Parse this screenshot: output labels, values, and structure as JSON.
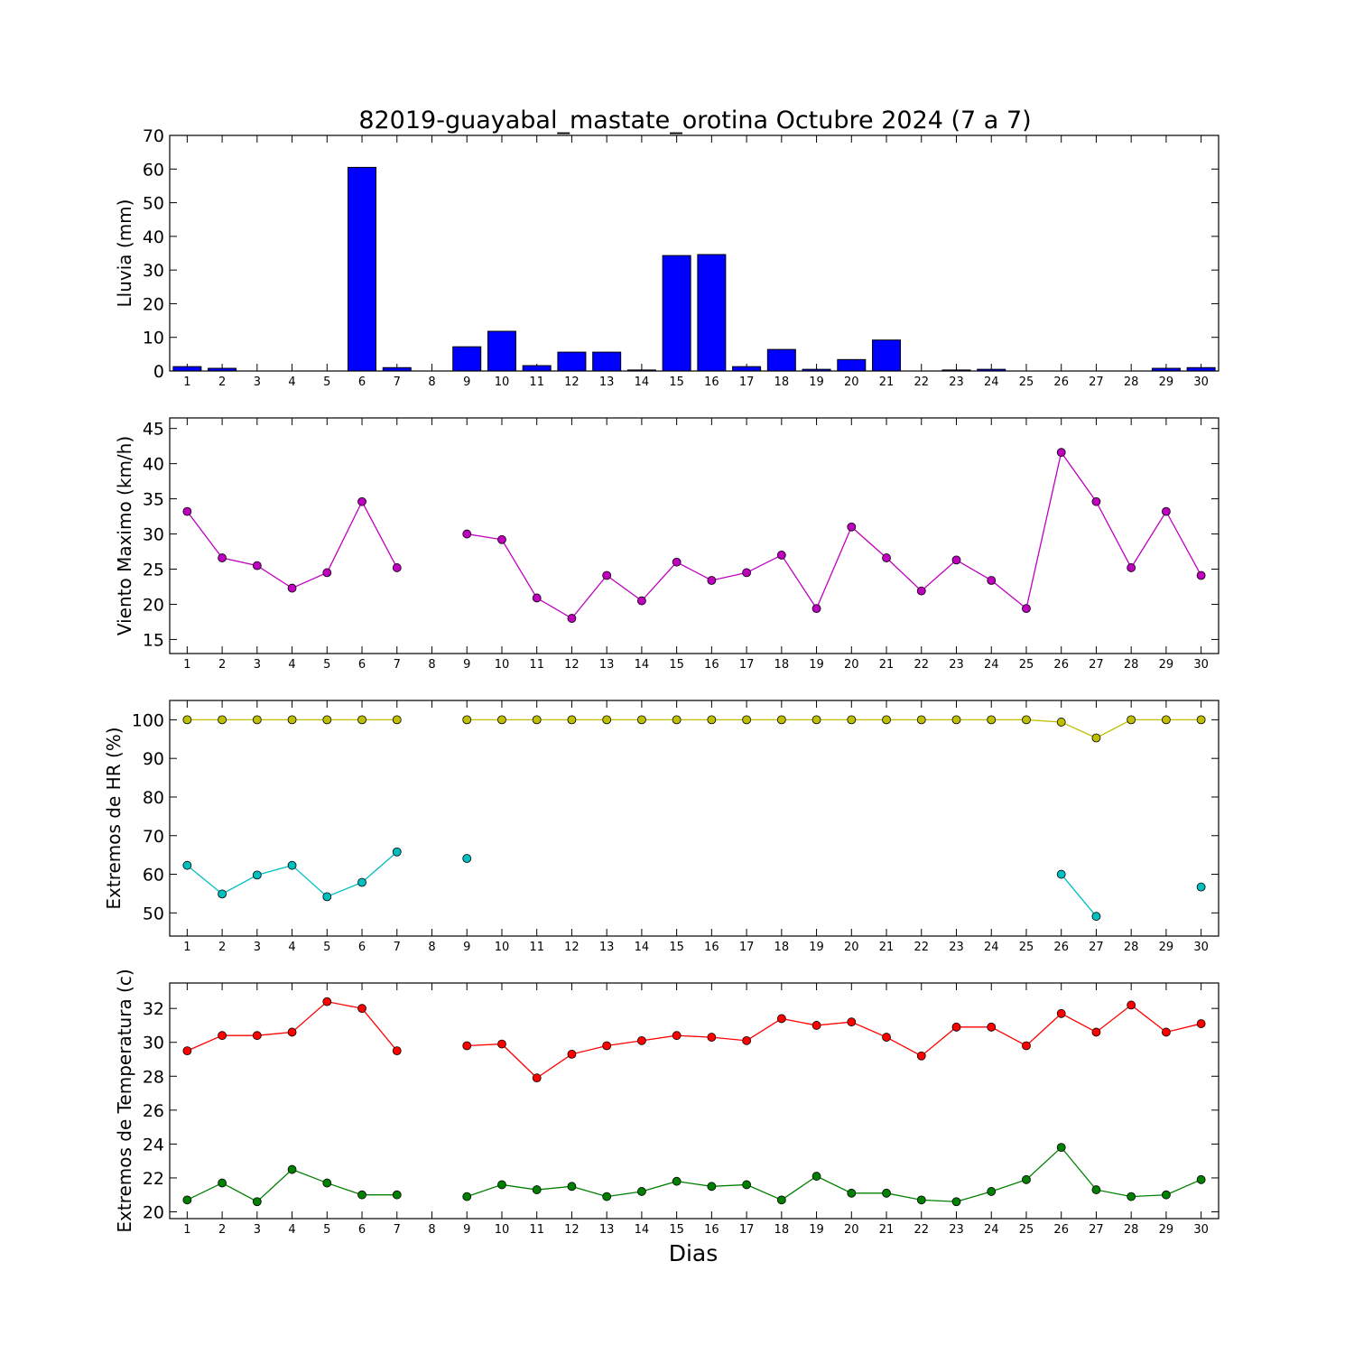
{
  "chart_data": {
    "title": "82019-guayabal_mastate_orotina Octubre 2024  (7 a 7)",
    "xlabel": "Dias",
    "x": [
      1,
      2,
      3,
      4,
      5,
      6,
      7,
      8,
      9,
      10,
      11,
      12,
      13,
      14,
      15,
      16,
      17,
      18,
      19,
      20,
      21,
      22,
      23,
      24,
      25,
      26,
      27,
      28,
      29,
      30
    ],
    "panels": [
      {
        "type": "bar",
        "ylabel": "Lluvia (mm)",
        "ylim": [
          0,
          70
        ],
        "yticks": [
          0,
          10,
          20,
          30,
          40,
          50,
          60,
          70
        ],
        "series": [
          {
            "color": "#0000ff",
            "values": [
              1.3,
              0.8,
              0,
              0,
              0,
              60.5,
              1.0,
              0,
              7.2,
              11.8,
              1.6,
              5.6,
              5.6,
              0.3,
              34.3,
              34.6,
              1.3,
              6.4,
              0.5,
              3.4,
              9.2,
              0,
              0.3,
              0.5,
              0,
              0,
              0,
              0,
              0.8,
              1.0
            ]
          }
        ]
      },
      {
        "type": "line",
        "ylabel": "Viento Maximo (km/h)",
        "ylim": [
          13,
          46.5
        ],
        "yticks": [
          15,
          20,
          25,
          30,
          35,
          40,
          45
        ],
        "series": [
          {
            "color": "#bf00bf",
            "values": [
              33.2,
              26.6,
              25.5,
              22.3,
              24.5,
              34.6,
              25.2,
              null,
              30.0,
              29.2,
              20.9,
              18.0,
              24.1,
              20.5,
              26.0,
              23.4,
              24.5,
              27.0,
              19.4,
              31.0,
              26.6,
              21.9,
              26.3,
              23.4,
              19.4,
              41.6,
              34.6,
              25.2,
              33.2,
              24.1
            ]
          }
        ]
      },
      {
        "type": "line",
        "ylabel": "Extremos de HR (%)",
        "ylim": [
          44,
          105
        ],
        "yticks": [
          50,
          60,
          70,
          80,
          90,
          100
        ],
        "series": [
          {
            "color": "#bfbf00",
            "values": [
              100,
              100,
              100,
              100,
              100,
              100,
              100,
              null,
              100,
              100,
              100,
              100,
              100,
              100,
              100,
              100,
              100,
              100,
              100,
              100,
              100,
              100,
              100,
              100,
              100,
              99.4,
              95.3,
              100,
              100,
              100
            ]
          },
          {
            "color": "#00bfbf",
            "values": [
              62.3,
              54.9,
              59.8,
              62.3,
              54.2,
              57.9,
              65.8,
              null,
              64.1,
              null,
              null,
              null,
              null,
              null,
              null,
              null,
              null,
              null,
              null,
              null,
              null,
              null,
              null,
              null,
              null,
              60.0,
              49.1,
              null,
              null,
              56.7
            ]
          }
        ]
      },
      {
        "type": "line",
        "ylabel": "Extremos de Temperatura (c)",
        "ylim": [
          19.6,
          33.5
        ],
        "yticks": [
          20,
          22,
          24,
          26,
          28,
          30,
          32
        ],
        "series": [
          {
            "color": "#ff0000",
            "values": [
              29.5,
              30.4,
              30.4,
              30.6,
              32.4,
              32.0,
              29.5,
              null,
              29.8,
              29.9,
              27.9,
              29.3,
              29.8,
              30.1,
              30.4,
              30.3,
              30.1,
              31.4,
              31.0,
              31.2,
              30.3,
              29.2,
              30.9,
              30.9,
              29.8,
              31.7,
              30.6,
              32.2,
              30.6,
              31.1
            ]
          },
          {
            "color": "#008000",
            "values": [
              20.7,
              21.7,
              20.6,
              22.5,
              21.7,
              21.0,
              21.0,
              null,
              20.9,
              21.6,
              21.3,
              21.5,
              20.9,
              21.2,
              21.8,
              21.5,
              21.6,
              20.7,
              22.1,
              21.1,
              21.1,
              20.7,
              20.6,
              21.2,
              21.9,
              23.8,
              21.3,
              20.9,
              21.0,
              21.9
            ]
          }
        ]
      }
    ]
  }
}
